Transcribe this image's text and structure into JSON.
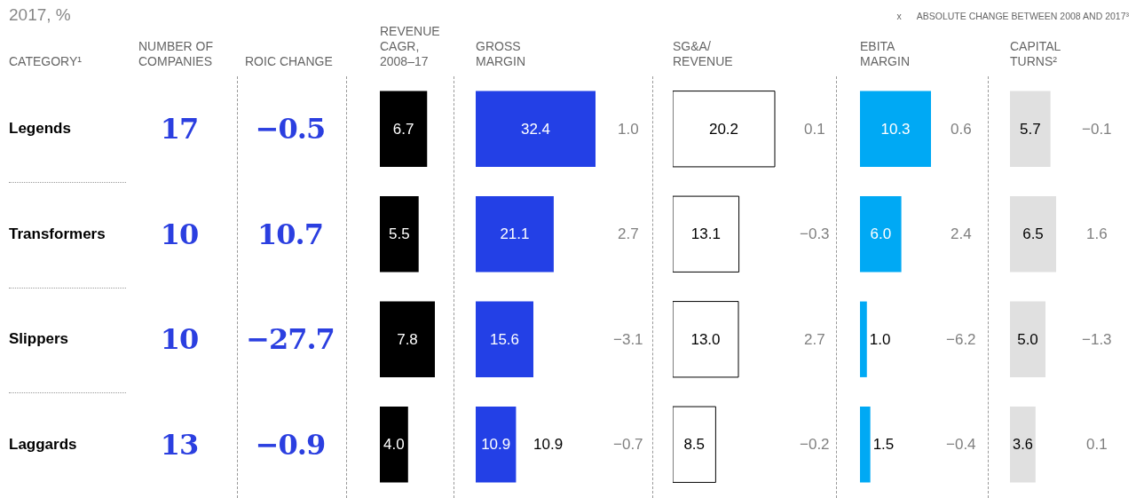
{
  "chart_data": [
    {
      "type": "other",
      "title": "2017, %",
      "xlabel": "CATEGORY¹",
      "categories": [
        "Legends",
        "Transformers",
        "Slippers",
        "Laggards"
      ],
      "series": [
        {
          "name": "NUMBER OF COMPANIES",
          "values": [
            17,
            10,
            10,
            13
          ]
        },
        {
          "name": "ROIC CHANGE",
          "values": [
            -0.5,
            10.7,
            -27.7,
            -0.9
          ]
        }
      ],
      "data_labels": true,
      "annotations": [
        "x      ABSOLUTE CHANGE BETWEEN 2008 AND 2017³"
      ]
    },
    {
      "type": "bar",
      "orientation": "horizontal",
      "title": "REVENUE CAGR, 2008–17",
      "categories": [
        "Legends",
        "Transformers",
        "Slippers",
        "Laggards"
      ],
      "tick_labels": false,
      "values": [
        6.7,
        5.5,
        7.8,
        4.0
      ],
      "value_labels": [
        "6.7",
        "5.5",
        "7.8",
        "4.0"
      ],
      "color": "#000000"
    },
    {
      "type": "bar",
      "orientation": "horizontal",
      "title": "GROSS MARGIN",
      "categories": [
        "Legends",
        "Transformers",
        "Slippers",
        "Laggards"
      ],
      "tick_labels": false,
      "values": [
        32.4,
        21.1,
        15.6,
        10.9
      ],
      "value_labels": [
        "32.4",
        "21.1",
        "15.6",
        "10.9"
      ],
      "color": "#2340e6",
      "annotations": [
        "1.0",
        "2.7",
        "−3.1",
        "−0.7",
        {
          "text": "10.9",
          "x": 10.9,
          "y": "Laggards"
        }
      ]
    },
    {
      "type": "bar",
      "orientation": "horizontal",
      "title": "SG&A/ REVENUE",
      "categories": [
        "Legends",
        "Transformers",
        "Slippers",
        "Laggards"
      ],
      "tick_labels": false,
      "values": [
        20.2,
        13.1,
        13.0,
        8.5
      ],
      "value_labels": [
        "20.2",
        "13.1",
        "13.0",
        "8.5"
      ],
      "color": "#ffffff",
      "annotations": [
        "0.1",
        "−0.3",
        "2.7",
        "−0.2"
      ]
    },
    {
      "type": "bar",
      "orientation": "horizontal",
      "title": "EBITA MARGIN",
      "categories": [
        "Legends",
        "Transformers",
        "Slippers",
        "Laggards"
      ],
      "tick_labels": false,
      "values": [
        10.3,
        6.0,
        1.0,
        1.5
      ],
      "value_labels": [
        "10.3",
        "6.0",
        "1.0",
        "1.5"
      ],
      "color": "#00a9f4",
      "annotations": [
        "0.6",
        "2.4",
        "−6.2",
        "−0.4"
      ]
    },
    {
      "type": "bar",
      "orientation": "horizontal",
      "title": "CAPITAL TURNS²",
      "categories": [
        "Legends",
        "Transformers",
        "Slippers",
        "Laggards"
      ],
      "tick_labels": false,
      "values": [
        5.7,
        6.5,
        5.0,
        3.6
      ],
      "value_labels": [
        "5.7",
        "6.5",
        "5.0",
        "3.6"
      ],
      "color": "#e0e0e0",
      "annotations": [
        "−0.1",
        "1.6",
        "−1.3",
        "0.1"
      ]
    }
  ]
}
